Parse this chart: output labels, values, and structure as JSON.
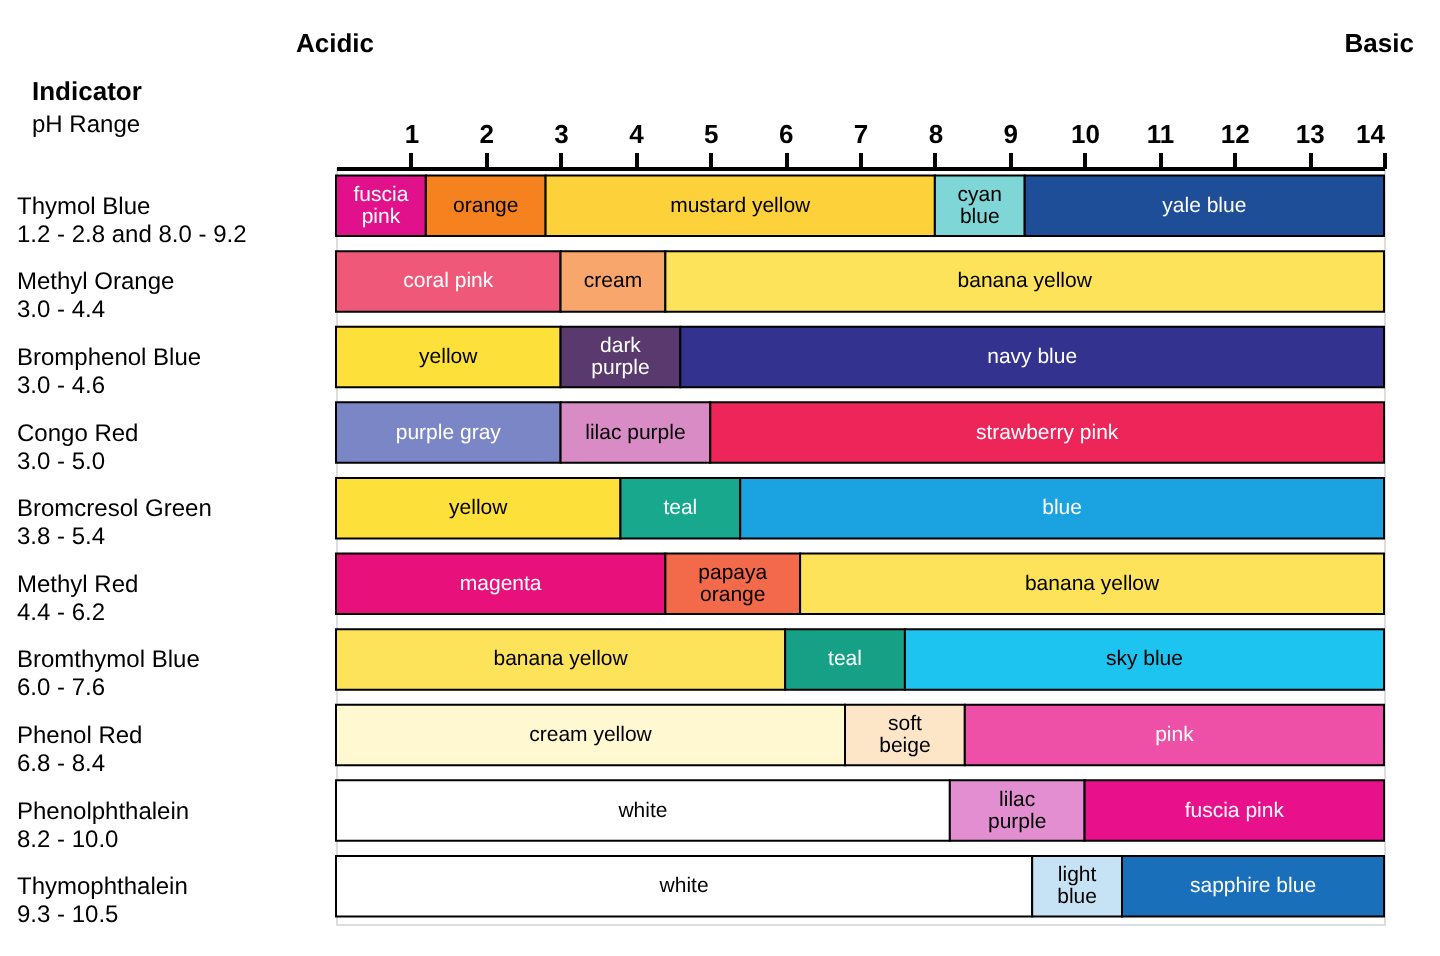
{
  "chart_data": {
    "type": "bar",
    "orientation": "horizontal",
    "stacked": true,
    "categories": [
      "Thymol Blue\n1.2 - 2.8 and 8.0 - 9.2",
      "Methyl Orange\n3.0 - 4.4",
      "Bromphenol Blue\n3.0 - 4.6",
      "Congo Red\n3.0 - 5.0",
      "Bromcresol Green\n3.8 - 5.4",
      "Methyl Red\n4.4 - 6.2",
      "Bromthymol Blue\n6.0 - 7.6",
      "Phenol Red\n6.8 - 8.4",
      "Phenolphthalein\n8.2 - 10.0",
      "Thymophthalein\n9.3 - 10.5"
    ],
    "xlim": [
      0,
      14
    ],
    "xticks": [
      1,
      2,
      3,
      4,
      5,
      6,
      7,
      8,
      9,
      10,
      11,
      12,
      13,
      14
    ],
    "annotations": [
      "Acidic",
      "Basic",
      "Indicator",
      "pH Range"
    ],
    "grid": false,
    "series": [
      {
        "values": [
          1.2,
          3.0,
          3.0,
          3.0,
          3.8,
          4.4,
          6.0,
          6.8,
          8.2,
          9.3
        ],
        "colors": [
          "#e0118a",
          "#f0587a",
          "#fde03a",
          "#7b86c6",
          "#fde03a",
          "#e8107a",
          "#fde35a",
          "#fff8d0",
          "#ffffff",
          "#ffffff"
        ],
        "value_labels": [
          "fuscia\npink",
          "coral pink",
          "yellow",
          "purple gray",
          "yellow",
          "magenta",
          "banana yellow",
          "cream yellow",
          "white",
          "white"
        ]
      },
      {
        "values": [
          1.6,
          1.4,
          1.6,
          2.0,
          1.6,
          1.8,
          1.6,
          1.6,
          1.8,
          1.2
        ],
        "colors": [
          "#f5821f",
          "#f9a66c",
          "#5a3a6e",
          "#d98bc6",
          "#17a88e",
          "#f26a4a",
          "#16a085",
          "#fde6c8",
          "#e28ed0",
          "#c5e3f5"
        ],
        "value_labels": [
          "orange",
          "cream",
          "dark\npurple",
          "lilac purple",
          "teal",
          "papaya\norange",
          "teal",
          "soft\nbeige",
          "lilac\npurple",
          "light\nblue"
        ]
      },
      {
        "values": [
          5.2,
          9.6,
          9.4,
          9.0,
          8.6,
          7.8,
          6.4,
          5.6,
          4.0,
          3.5
        ],
        "colors": [
          "#fcd13a",
          "#fde35a",
          "#33338f",
          "#ee2558",
          "#1aa3e0",
          "#fde35a",
          "#1ec4f0",
          "#ee4fa7",
          "#e8108b",
          "#1a6fba"
        ],
        "value_labels": [
          "mustard yellow",
          "banana yellow",
          "navy blue",
          "strawberry pink",
          "blue",
          "banana yellow",
          "sky blue",
          "pink",
          "fuscia pink",
          "sapphire blue"
        ]
      },
      {
        "values": [
          1.2,
          null,
          null,
          null,
          null,
          null,
          null,
          null,
          null,
          null
        ],
        "colors": [
          "#7fd6d6",
          null,
          null,
          null,
          null,
          null,
          null,
          null,
          null,
          null
        ],
        "value_labels": [
          "cyan\nblue",
          null,
          null,
          null,
          null,
          null,
          null,
          null,
          null,
          null
        ]
      },
      {
        "values": [
          4.8,
          null,
          null,
          null,
          null,
          null,
          null,
          null,
          null,
          null
        ],
        "colors": [
          "#1f4e99",
          null,
          null,
          null,
          null,
          null,
          null,
          null,
          null,
          null
        ],
        "value_labels": [
          "yale blue",
          null,
          null,
          null,
          null,
          null,
          null,
          null,
          null,
          null
        ]
      }
    ]
  }
}
